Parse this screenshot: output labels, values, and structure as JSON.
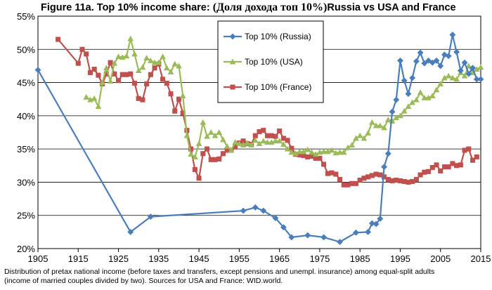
{
  "title": {
    "prefix": "Figure 11a. Top 10% income share: ",
    "russian": "(Доля дохода топ 10%)",
    "suffix": "Russia vs USA and France"
  },
  "caption": {
    "line1": "Distribution of pretax national income (before taxes and transfers, except pensions and unempl. insurance) among equal-split adults",
    "line2": "(income of married couples divided by two). Sources for USA and France: WID.world."
  },
  "chart_data": {
    "type": "line",
    "xlim": [
      1905,
      2015
    ],
    "ylim": [
      20,
      55
    ],
    "x_ticks": [
      "1905",
      "1915",
      "1925",
      "1935",
      "1945",
      "1955",
      "1965",
      "1975",
      "1985",
      "1995",
      "2005",
      "2015"
    ],
    "y_ticks": [
      "20%",
      "25%",
      "30%",
      "35%",
      "40%",
      "45%",
      "50%",
      "55%"
    ],
    "grid": true,
    "legend_position": "top-center",
    "series": [
      {
        "name": "Top 10% (Russia)",
        "color": "#4a7ebb",
        "marker": "diamond",
        "points": [
          [
            1905,
            46.9
          ],
          [
            1928,
            22.5
          ],
          [
            1933,
            24.8
          ],
          [
            1956,
            25.7
          ],
          [
            1959,
            26.2
          ],
          [
            1961,
            25.7
          ],
          [
            1964,
            24.6
          ],
          [
            1966,
            23.2
          ],
          [
            1968,
            21.7
          ],
          [
            1972,
            22.0
          ],
          [
            1976,
            21.7
          ],
          [
            1980,
            21.0
          ],
          [
            1984,
            22.4
          ],
          [
            1987,
            22.5
          ],
          [
            1988,
            23.8
          ],
          [
            1989,
            23.7
          ],
          [
            1990,
            24.5
          ],
          [
            1991,
            32.3
          ],
          [
            1992,
            34.3
          ],
          [
            1993,
            40.6
          ],
          [
            1994,
            42.4
          ],
          [
            1995,
            48.3
          ],
          [
            1996,
            45.3
          ],
          [
            1997,
            43.3
          ],
          [
            1998,
            45.7
          ],
          [
            1999,
            48.2
          ],
          [
            2000,
            49.5
          ],
          [
            2001,
            47.9
          ],
          [
            2002,
            48.3
          ],
          [
            2003,
            48.0
          ],
          [
            2004,
            48.3
          ],
          [
            2005,
            47.5
          ],
          [
            2006,
            49.2
          ],
          [
            2007,
            49.0
          ],
          [
            2008,
            52.2
          ],
          [
            2009,
            49.6
          ],
          [
            2010,
            46.8
          ],
          [
            2011,
            48.0
          ],
          [
            2012,
            46.3
          ],
          [
            2013,
            47.2
          ],
          [
            2014,
            45.5
          ],
          [
            2015,
            45.5
          ]
        ]
      },
      {
        "name": "Top 10% (USA)",
        "color": "#9bbb59",
        "marker": "triangle",
        "points": [
          [
            1917,
            42.8
          ],
          [
            1918,
            42.4
          ],
          [
            1919,
            42.6
          ],
          [
            1920,
            41.4
          ],
          [
            1921,
            45.0
          ],
          [
            1922,
            47.2
          ],
          [
            1923,
            45.2
          ],
          [
            1924,
            47.9
          ],
          [
            1925,
            48.9
          ],
          [
            1926,
            48.8
          ],
          [
            1927,
            49.0
          ],
          [
            1928,
            51.6
          ],
          [
            1929,
            49.3
          ],
          [
            1930,
            46.8
          ],
          [
            1931,
            47.3
          ],
          [
            1932,
            48.7
          ],
          [
            1933,
            48.3
          ],
          [
            1934,
            48.0
          ],
          [
            1935,
            48.0
          ],
          [
            1936,
            48.9
          ],
          [
            1937,
            47.2
          ],
          [
            1938,
            46.6
          ],
          [
            1939,
            47.8
          ],
          [
            1940,
            47.5
          ],
          [
            1941,
            43.0
          ],
          [
            1942,
            37.0
          ],
          [
            1943,
            34.2
          ],
          [
            1944,
            33.8
          ],
          [
            1945,
            35.8
          ],
          [
            1946,
            39.0
          ],
          [
            1947,
            36.9
          ],
          [
            1948,
            37.5
          ],
          [
            1949,
            37.0
          ],
          [
            1950,
            37.5
          ],
          [
            1951,
            36.4
          ],
          [
            1952,
            35.4
          ],
          [
            1953,
            34.8
          ],
          [
            1954,
            36.0
          ],
          [
            1955,
            35.8
          ],
          [
            1956,
            35.6
          ],
          [
            1957,
            35.9
          ],
          [
            1958,
            35.6
          ],
          [
            1959,
            36.3
          ],
          [
            1960,
            35.8
          ],
          [
            1961,
            36.2
          ],
          [
            1962,
            36.0
          ],
          [
            1963,
            36.0
          ],
          [
            1964,
            36.2
          ],
          [
            1965,
            36.2
          ],
          [
            1966,
            35.7
          ],
          [
            1967,
            35.0
          ],
          [
            1968,
            34.5
          ],
          [
            1969,
            34.3
          ],
          [
            1970,
            34.6
          ],
          [
            1971,
            34.6
          ],
          [
            1972,
            34.9
          ],
          [
            1973,
            34.5
          ],
          [
            1974,
            34.2
          ],
          [
            1975,
            34.5
          ],
          [
            1976,
            34.6
          ],
          [
            1977,
            34.6
          ],
          [
            1978,
            34.8
          ],
          [
            1979,
            34.4
          ],
          [
            1980,
            34.5
          ],
          [
            1981,
            34.5
          ],
          [
            1982,
            35.2
          ],
          [
            1983,
            35.6
          ],
          [
            1984,
            36.6
          ],
          [
            1985,
            37.0
          ],
          [
            1986,
            36.6
          ],
          [
            1987,
            37.4
          ],
          [
            1988,
            39.0
          ],
          [
            1989,
            38.5
          ],
          [
            1990,
            38.5
          ],
          [
            1991,
            38.2
          ],
          [
            1992,
            39.4
          ],
          [
            1993,
            39.2
          ],
          [
            1994,
            39.7
          ],
          [
            1995,
            40.0
          ],
          [
            1996,
            40.7
          ],
          [
            1997,
            41.4
          ],
          [
            1998,
            42.0
          ],
          [
            1999,
            42.4
          ],
          [
            2000,
            43.5
          ],
          [
            2001,
            42.7
          ],
          [
            2002,
            42.7
          ],
          [
            2003,
            43.0
          ],
          [
            2004,
            43.9
          ],
          [
            2005,
            44.8
          ],
          [
            2006,
            45.7
          ],
          [
            2007,
            46.0
          ],
          [
            2008,
            45.7
          ],
          [
            2009,
            45.5
          ],
          [
            2010,
            46.5
          ],
          [
            2011,
            46.0
          ],
          [
            2012,
            47.5
          ],
          [
            2013,
            46.5
          ],
          [
            2014,
            47.0
          ],
          [
            2015,
            47.3
          ]
        ]
      },
      {
        "name": "Top 10% (France)",
        "color": "#c0504d",
        "marker": "square",
        "points": [
          [
            1910,
            51.5
          ],
          [
            1915,
            47.9
          ],
          [
            1916,
            50.0
          ],
          [
            1917,
            49.3
          ],
          [
            1918,
            46.5
          ],
          [
            1919,
            47.0
          ],
          [
            1920,
            46.1
          ],
          [
            1921,
            44.8
          ],
          [
            1922,
            46.3
          ],
          [
            1923,
            48.0
          ],
          [
            1924,
            46.3
          ],
          [
            1925,
            45.3
          ],
          [
            1926,
            46.2
          ],
          [
            1927,
            46.2
          ],
          [
            1928,
            46.3
          ],
          [
            1929,
            44.9
          ],
          [
            1930,
            42.6
          ],
          [
            1931,
            42.4
          ],
          [
            1932,
            44.8
          ],
          [
            1933,
            46.2
          ],
          [
            1934,
            47.2
          ],
          [
            1935,
            47.8
          ],
          [
            1936,
            45.5
          ],
          [
            1937,
            44.9
          ],
          [
            1938,
            43.3
          ],
          [
            1939,
            40.7
          ],
          [
            1940,
            42.5
          ],
          [
            1941,
            40.4
          ],
          [
            1942,
            37.8
          ],
          [
            1943,
            35.0
          ],
          [
            1944,
            31.9
          ],
          [
            1945,
            30.6
          ],
          [
            1946,
            34.3
          ],
          [
            1947,
            35.0
          ],
          [
            1948,
            33.4
          ],
          [
            1949,
            33.4
          ],
          [
            1950,
            33.5
          ],
          [
            1951,
            34.3
          ],
          [
            1952,
            34.8
          ],
          [
            1953,
            34.8
          ],
          [
            1954,
            35.3
          ],
          [
            1955,
            35.9
          ],
          [
            1956,
            36.2
          ],
          [
            1957,
            35.8
          ],
          [
            1958,
            35.7
          ],
          [
            1959,
            37.0
          ],
          [
            1960,
            37.6
          ],
          [
            1961,
            37.8
          ],
          [
            1962,
            37.0
          ],
          [
            1963,
            37.0
          ],
          [
            1964,
            36.9
          ],
          [
            1965,
            37.7
          ],
          [
            1966,
            36.6
          ],
          [
            1967,
            36.3
          ],
          [
            1968,
            35.1
          ],
          [
            1969,
            34.2
          ],
          [
            1970,
            34.1
          ],
          [
            1971,
            34.0
          ],
          [
            1972,
            33.8
          ],
          [
            1973,
            33.9
          ],
          [
            1974,
            33.6
          ],
          [
            1975,
            33.6
          ],
          [
            1976,
            32.7
          ],
          [
            1977,
            31.3
          ],
          [
            1978,
            31.4
          ],
          [
            1979,
            31.2
          ],
          [
            1980,
            30.4
          ],
          [
            1981,
            29.6
          ],
          [
            1982,
            29.6
          ],
          [
            1983,
            29.8
          ],
          [
            1984,
            29.8
          ],
          [
            1985,
            30.3
          ],
          [
            1986,
            30.6
          ],
          [
            1987,
            30.8
          ],
          [
            1988,
            31.0
          ],
          [
            1989,
            31.2
          ],
          [
            1990,
            31.1
          ],
          [
            1991,
            30.8
          ],
          [
            1992,
            30.4
          ],
          [
            1993,
            30.2
          ],
          [
            1994,
            30.3
          ],
          [
            1995,
            30.2
          ],
          [
            1996,
            30.1
          ],
          [
            1997,
            30.0
          ],
          [
            1998,
            30.1
          ],
          [
            1999,
            30.4
          ],
          [
            2000,
            31.1
          ],
          [
            2001,
            31.5
          ],
          [
            2002,
            31.6
          ],
          [
            2003,
            32.2
          ],
          [
            2004,
            32.6
          ],
          [
            2005,
            31.7
          ],
          [
            2006,
            32.3
          ],
          [
            2007,
            32.3
          ],
          [
            2008,
            32.8
          ],
          [
            2009,
            32.5
          ],
          [
            2010,
            32.6
          ],
          [
            2011,
            34.8
          ],
          [
            2012,
            35.0
          ],
          [
            2013,
            33.3
          ],
          [
            2014,
            33.8
          ]
        ]
      }
    ]
  }
}
